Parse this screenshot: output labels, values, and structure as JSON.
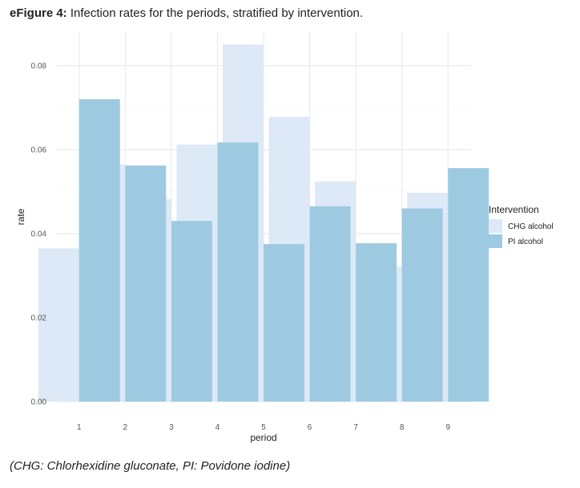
{
  "figure": {
    "title_bold": "eFigure 4:",
    "title_rest": " Infection rates for the periods, stratified by intervention.",
    "footnote": "(CHG: Chlorhexidine gluconate, PI: Povidone iodine)"
  },
  "chart_data": {
    "type": "bar",
    "xlabel": "period",
    "ylabel": "rate",
    "categories": [
      "1",
      "2",
      "3",
      "4",
      "5",
      "6",
      "7",
      "8",
      "9"
    ],
    "ylim": [
      0,
      0.088
    ],
    "yticks": [
      0.0,
      0.02,
      0.04,
      0.06,
      0.08
    ],
    "ytick_labels": [
      "0.00",
      "0.02",
      "0.04",
      "0.06",
      "0.08"
    ],
    "grid": true,
    "legend_title": "Intervention",
    "legend_position": "right",
    "series": [
      {
        "name": "CHG alcohol",
        "color": "#dde9f6",
        "values": [
          0.0365,
          0.0565,
          0.0482,
          0.0612,
          0.085,
          0.0678,
          0.0524,
          0.0321,
          0.0497
        ]
      },
      {
        "name": "PI alcohol",
        "color": "#9ecae1",
        "values": [
          0.072,
          0.0562,
          0.043,
          0.0617,
          0.0375,
          0.0465,
          0.0377,
          0.046,
          0.0556
        ]
      }
    ]
  }
}
